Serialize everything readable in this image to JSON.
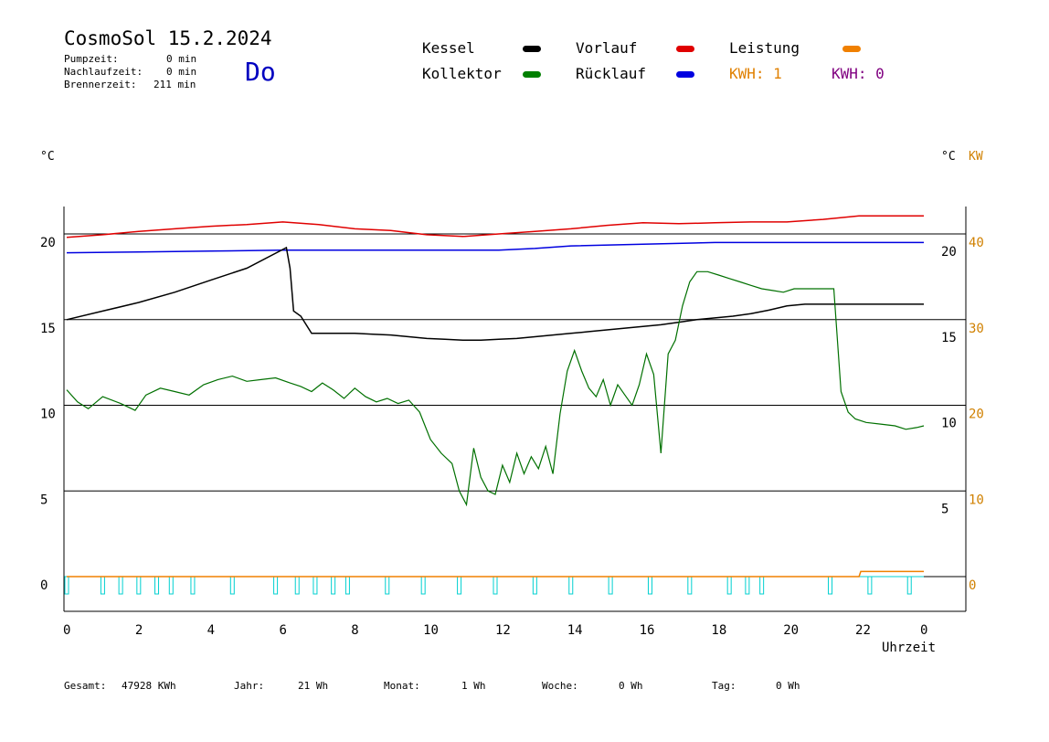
{
  "header": {
    "title": "CosmoSol 15.2.2024",
    "stats": [
      {
        "label": "Pumpzeit:",
        "value": "0 min"
      },
      {
        "label": "Nachlaufzeit:",
        "value": "0 min"
      },
      {
        "label": "Brennerzeit:",
        "value": "211 min"
      }
    ],
    "weekday": "Do"
  },
  "legend": {
    "kessel": {
      "label": "Kessel",
      "color": "#000000"
    },
    "vorlauf": {
      "label": "Vorlauf",
      "color": "#e00000"
    },
    "leistung": {
      "label": "Leistung",
      "color": "#f08000"
    },
    "kollektor": {
      "label": "Kollektor",
      "color": "#008000"
    },
    "ruecklauf": {
      "label": "Rücklauf",
      "color": "#0000e0"
    },
    "kwh1": {
      "label": "KWH: 1",
      "color": "#e08000"
    },
    "kwh2": {
      "label": "KWH: 0",
      "color": "#800080"
    }
  },
  "footer": {
    "gesamt": {
      "label": "Gesamt:",
      "value": "47928 KWh"
    },
    "jahr": {
      "label": "Jahr:",
      "value": "21 Wh"
    },
    "monat": {
      "label": "Monat:",
      "value": "1 Wh"
    },
    "woche": {
      "label": "Woche:",
      "value": "0 Wh"
    },
    "tag": {
      "label": "Tag:",
      "value": "0 Wh"
    }
  },
  "chart_data": {
    "type": "line",
    "xlabel": "Uhrzeit",
    "x_ticks": [
      "0",
      "2",
      "4",
      "6",
      "8",
      "10",
      "12",
      "14",
      "16",
      "18",
      "20",
      "22",
      "0"
    ],
    "xlim": [
      0,
      23.8
    ],
    "left_axis": {
      "unit": "°C",
      "ticks": [
        "0",
        "5",
        "10",
        "15",
        "20"
      ],
      "ylim": [
        -1.5,
        22
      ]
    },
    "inner_right_axis": {
      "unit": "°C",
      "ticks": [
        "5",
        "10",
        "15",
        "20"
      ]
    },
    "right_axis": {
      "unit": "KW",
      "ticks": [
        "0",
        "10",
        "20",
        "30",
        "40"
      ],
      "color": "#d08000"
    },
    "grid": true,
    "series": [
      {
        "name": "Vorlauf",
        "color": "#e00000",
        "x": [
          0,
          1,
          2,
          3,
          4,
          5,
          6,
          7,
          8,
          9,
          10,
          11,
          12,
          13,
          14,
          15,
          16,
          17,
          18,
          19,
          20,
          21,
          22,
          23.8
        ],
        "y": [
          19.8,
          19.95,
          20.15,
          20.3,
          20.45,
          20.55,
          20.7,
          20.55,
          20.3,
          20.2,
          19.95,
          19.85,
          20,
          20.15,
          20.3,
          20.5,
          20.65,
          20.6,
          20.65,
          20.7,
          20.7,
          20.85,
          21.05,
          21.05
        ]
      },
      {
        "name": "Rücklauf",
        "color": "#0000e0",
        "x": [
          0,
          2,
          4,
          6,
          8,
          10,
          12,
          13,
          14,
          16,
          18,
          20,
          22,
          23.8
        ],
        "y": [
          18.9,
          18.95,
          19.0,
          19.05,
          19.05,
          19.05,
          19.05,
          19.15,
          19.3,
          19.4,
          19.5,
          19.5,
          19.5,
          19.5
        ]
      },
      {
        "name": "Kessel",
        "color": "#000000",
        "x": [
          0,
          1,
          2,
          3,
          4,
          5,
          6.1,
          6.2,
          6.3,
          6.5,
          6.8,
          7,
          7.5,
          8,
          8.5,
          9,
          9.5,
          10,
          10.5,
          11,
          11.5,
          12,
          12.5,
          13,
          13.5,
          14,
          14.5,
          15,
          15.5,
          16,
          16.5,
          17,
          17.5,
          18,
          18.5,
          19,
          19.5,
          20,
          20.5,
          21,
          22,
          23.8
        ],
        "y": [
          15.0,
          15.5,
          16.0,
          16.6,
          17.3,
          18.0,
          19.2,
          18.0,
          15.5,
          15.2,
          14.2,
          14.2,
          14.2,
          14.2,
          14.15,
          14.1,
          14.0,
          13.9,
          13.85,
          13.8,
          13.8,
          13.85,
          13.9,
          14.0,
          14.1,
          14.2,
          14.3,
          14.4,
          14.5,
          14.6,
          14.7,
          14.85,
          15.0,
          15.1,
          15.2,
          15.35,
          15.55,
          15.8,
          15.9,
          15.9,
          15.9,
          15.9
        ]
      },
      {
        "name": "Kollektor",
        "color": "#007000",
        "x": [
          0,
          0.3,
          0.6,
          1,
          1.5,
          1.9,
          2.2,
          2.6,
          3,
          3.4,
          3.8,
          4.2,
          4.6,
          5,
          5.4,
          5.8,
          6.2,
          6.5,
          6.8,
          7.1,
          7.4,
          7.7,
          8,
          8.3,
          8.6,
          8.9,
          9.2,
          9.5,
          9.8,
          10.1,
          10.4,
          10.7,
          10.9,
          11.1,
          11.3,
          11.5,
          11.7,
          11.9,
          12.1,
          12.3,
          12.5,
          12.7,
          12.9,
          13.1,
          13.3,
          13.5,
          13.7,
          13.9,
          14.1,
          14.3,
          14.5,
          14.7,
          14.9,
          15.1,
          15.3,
          15.5,
          15.7,
          15.9,
          16.1,
          16.3,
          16.5,
          16.7,
          16.9,
          17.1,
          17.3,
          17.5,
          17.8,
          18.1,
          18.4,
          18.7,
          19,
          19.3,
          19.6,
          19.9,
          20.2,
          20.5,
          20.8,
          21.1,
          21.3,
          21.5,
          21.7,
          21.9,
          22.2,
          22.6,
          23,
          23.3,
          23.6,
          23.8
        ],
        "y": [
          10.9,
          10.2,
          9.8,
          10.5,
          10.1,
          9.7,
          10.6,
          11.0,
          10.8,
          10.6,
          11.2,
          11.5,
          11.7,
          11.4,
          11.5,
          11.6,
          11.3,
          11.1,
          10.8,
          11.3,
          10.9,
          10.4,
          11.0,
          10.5,
          10.2,
          10.4,
          10.1,
          10.3,
          9.6,
          8.0,
          7.2,
          6.6,
          5.0,
          4.2,
          7.5,
          5.8,
          5.0,
          4.8,
          6.5,
          5.5,
          7.2,
          6.0,
          7.0,
          6.3,
          7.6,
          6.0,
          9.5,
          12.0,
          13.2,
          12.0,
          11.0,
          10.5,
          11.5,
          10.0,
          11.2,
          10.6,
          10.0,
          11.2,
          13.0,
          11.8,
          7.2,
          13.0,
          13.8,
          15.8,
          17.2,
          17.8,
          17.8,
          17.6,
          17.4,
          17.2,
          17.0,
          16.8,
          16.7,
          16.6,
          16.8,
          16.8,
          16.8,
          16.8,
          16.8,
          10.8,
          9.6,
          9.2,
          9.0,
          8.9,
          8.8,
          8.6,
          8.7,
          8.8
        ]
      },
      {
        "name": "Leistung",
        "color": "#f08000",
        "x": [
          0,
          22,
          22.05,
          23.8
        ],
        "y": [
          0,
          0,
          0.3,
          0.3
        ]
      }
    ],
    "pump_pulses_hours": [
      0,
      1,
      1.5,
      2,
      2.5,
      2.9,
      3.5,
      4.6,
      5.8,
      6.4,
      6.9,
      7.4,
      7.8,
      8.9,
      9.9,
      10.9,
      11.9,
      13,
      14,
      15.1,
      16.2,
      17.3,
      18.4,
      18.9,
      19.3,
      21.2,
      22.3,
      23.4
    ],
    "pump_color": "#00d0d0"
  }
}
